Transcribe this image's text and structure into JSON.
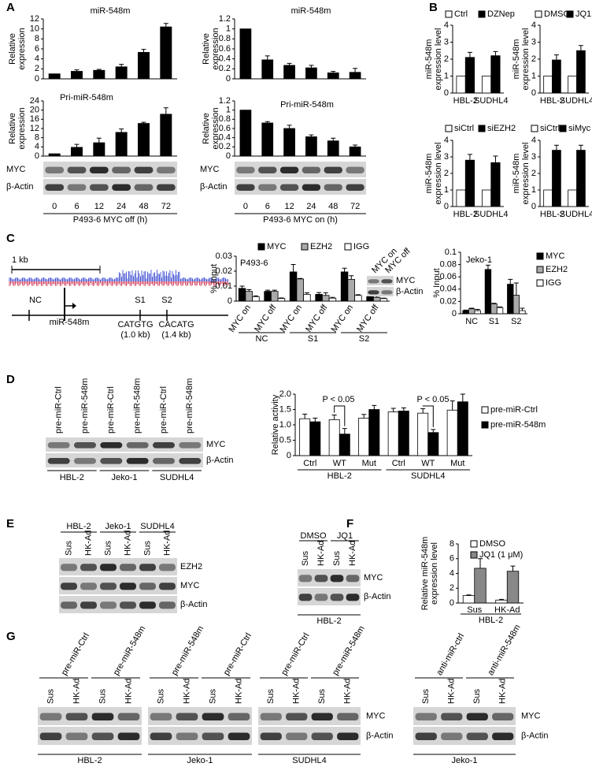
{
  "panel_letters": [
    "A",
    "B",
    "C",
    "D",
    "E",
    "F",
    "G"
  ],
  "map": {
    "scale": "1 kb",
    "sites": [
      "NC",
      "S1",
      "S2"
    ],
    "gene": "miR-548m",
    "motifs": [
      {
        "seq": "CATGTG",
        "dist": "(1.0 kb)"
      },
      {
        "seq": "CACATG",
        "dist": "(1.4 kb)"
      }
    ]
  },
  "chart_data": [
    {
      "type": "bar",
      "title": "miR-548m",
      "ylabel": [
        "Relative",
        "expression"
      ],
      "categories": [
        null,
        null,
        null,
        null,
        null,
        null
      ],
      "color": "#000000",
      "values": [
        1,
        1.5,
        1.7,
        2.4,
        5.3,
        10.4
      ],
      "errors": [
        null,
        0.3,
        0.2,
        0.5,
        0.6,
        0.7
      ],
      "ylim": [
        0,
        12
      ],
      "yticks": [
        0,
        2,
        4,
        6,
        8,
        10,
        12
      ]
    },
    {
      "type": "bar",
      "title": "Pri-miR-548m",
      "ylabel": [
        "Relative",
        "expression"
      ],
      "categories": [
        null,
        null,
        null,
        null,
        null,
        null
      ],
      "color": "#000000",
      "values": [
        1,
        3.8,
        5.8,
        10.3,
        14.2,
        18.2
      ],
      "errors": [
        null,
        1.3,
        2,
        1.5,
        0.5,
        2.8
      ],
      "ylim": [
        0,
        24
      ],
      "yticks": [
        0,
        4,
        8,
        12,
        16,
        20,
        24
      ]
    },
    {
      "type": "bar",
      "title": "miR-548m",
      "ylabel": [
        "Relative",
        "expression"
      ],
      "categories": [
        null,
        null,
        null,
        null,
        null,
        null
      ],
      "color": "#000000",
      "values": [
        1,
        0.38,
        0.27,
        0.22,
        0.12,
        0.13
      ],
      "errors": [
        null,
        0.08,
        0.04,
        0.05,
        0.03,
        0.08
      ],
      "ylim": [
        0,
        1.2
      ],
      "yticks": [
        0,
        0.2,
        0.4,
        0.6,
        0.8,
        1,
        1.2
      ]
    },
    {
      "type": "bar",
      "title": "Pri-miR-548m",
      "ylabel": [
        "Relative",
        "expression"
      ],
      "categories": [
        null,
        null,
        null,
        null,
        null,
        null
      ],
      "color": "#000000",
      "values": [
        1,
        0.72,
        0.6,
        0.42,
        0.33,
        0.2
      ],
      "errors": [
        null,
        0.03,
        0.07,
        0.04,
        0.06,
        0.04
      ],
      "ylim": [
        0,
        1.2
      ],
      "yticks": [
        0,
        0.2,
        0.4,
        0.6,
        0.8,
        1,
        1.2
      ]
    },
    {
      "type": "bar",
      "ylabel": [
        "miR-548m",
        "expression level"
      ],
      "categories": [
        "HBL-2",
        "SUDHL4"
      ],
      "ylim": [
        0,
        4
      ],
      "yticks": [
        0,
        1,
        2,
        3,
        4
      ],
      "series": [
        {
          "name": "Ctrl",
          "color": "#ffffff",
          "values": [
            1,
            1
          ]
        },
        {
          "name": "DZNep",
          "color": "#000000",
          "values": [
            2.1,
            2.2
          ],
          "errors": [
            0.3,
            0.25
          ]
        }
      ]
    },
    {
      "type": "bar",
      "ylabel": [
        "miR-548m",
        "expression level"
      ],
      "categories": [
        "HBL-2",
        "SUDHL4"
      ],
      "ylim": [
        0,
        4
      ],
      "yticks": [
        0,
        1,
        2,
        3,
        4
      ],
      "series": [
        {
          "name": "DMSO",
          "color": "#ffffff",
          "values": [
            1,
            1
          ]
        },
        {
          "name": "JQ1",
          "color": "#000000",
          "values": [
            1.95,
            2.5
          ],
          "errors": [
            0.3,
            0.3
          ]
        }
      ]
    },
    {
      "type": "bar",
      "ylabel": [
        "miR-548m",
        "expression level"
      ],
      "categories": [
        "HBL-2",
        "SUDHL4"
      ],
      "ylim": [
        0,
        4
      ],
      "yticks": [
        0,
        1,
        2,
        3,
        4
      ],
      "series": [
        {
          "name": "siCtrl",
          "color": "#ffffff",
          "values": [
            1,
            1
          ]
        },
        {
          "name": "siEZH2",
          "color": "#000000",
          "values": [
            2.8,
            2.65
          ],
          "errors": [
            0.35,
            0.4
          ]
        }
      ]
    },
    {
      "type": "bar",
      "ylabel": [
        "miR-548m",
        "expression level"
      ],
      "categories": [
        "HBL-2",
        "SUDHL4"
      ],
      "ylim": [
        0,
        4
      ],
      "yticks": [
        0,
        1,
        2,
        3,
        4
      ],
      "series": [
        {
          "name": "siCtrl",
          "color": "#ffffff",
          "values": [
            1,
            1
          ]
        },
        {
          "name": "siMyc",
          "color": "#000000",
          "values": [
            3.4,
            3.4
          ],
          "errors": [
            0.3,
            0.3
          ]
        }
      ]
    },
    {
      "type": "bar",
      "title": "P493-6",
      "ylabel": [
        "% Input"
      ],
      "categories": [
        "MYC on",
        "MYC off",
        "MYC on",
        "MYC off",
        "MYC on",
        "MYC off"
      ],
      "groups": [
        "NC",
        "S1",
        "S2"
      ],
      "ylim": [
        0,
        0.03
      ],
      "yticks": [
        0,
        0.01,
        0.02,
        0.03
      ],
      "series": [
        {
          "name": "MYC",
          "color": "#000000",
          "values": [
            0.0085,
            0.0065,
            0.0195,
            0.0045,
            0.0195,
            0.003
          ],
          "errors": [
            0.0015,
            0.0008,
            0.005,
            0.0012,
            0.0025,
            0.0008
          ]
        },
        {
          "name": "EZH2",
          "color": "#aaaaaa",
          "values": [
            0.0065,
            0.0065,
            0.0148,
            0.0038,
            0.0145,
            0.0025
          ],
          "errors": [
            0.0012,
            0.0008,
            0.0003,
            0.0018,
            0.0025,
            0.0008
          ]
        },
        {
          "name": "IGG",
          "color": "#ffffff",
          "values": [
            0.003,
            0.0018,
            0.0045,
            0.002,
            0.0038,
            0.0017
          ],
          "errors": [
            0.0005,
            0.0003,
            0.001,
            0.0005,
            0.0005,
            0.0003
          ]
        }
      ]
    },
    {
      "type": "bar",
      "title": "Jeko-1",
      "ylabel": [
        "% Input"
      ],
      "categories": [
        "NC",
        "S1",
        "S2"
      ],
      "ylim": [
        0,
        0.1
      ],
      "yticks": [
        0,
        0.02,
        0.04,
        0.06,
        0.08,
        0.1
      ],
      "series": [
        {
          "name": "MYC",
          "color": "#000000",
          "values": [
            0.005,
            0.072,
            0.048
          ],
          "errors": [
            0.001,
            0.007,
            0.008
          ]
        },
        {
          "name": "EZH2",
          "color": "#aaaaaa",
          "values": [
            0.008,
            0.016,
            0.03
          ],
          "errors": [
            0.001,
            0.001,
            0.02
          ]
        },
        {
          "name": "IGG",
          "color": "#ffffff",
          "values": [
            0.005,
            0.01,
            0.005
          ],
          "errors": [
            0.002,
            0.001,
            0.004
          ]
        }
      ]
    },
    {
      "type": "bar",
      "ylabel": [
        "Relative activity"
      ],
      "categories": [
        "Ctrl",
        "WT",
        "Mut",
        "Ctrl",
        "WT",
        "Mut"
      ],
      "groups": [
        "HBL-2",
        "SUDHL4"
      ],
      "ylim": [
        0,
        2
      ],
      "yticks": [
        0,
        0.5,
        {
          "value": 1,
          "label": "1.0"
        },
        1.5,
        {
          "value": 2,
          "label": "2.0"
        }
      ],
      "annotations": [
        "P < 0.05",
        "P < 0.05"
      ],
      "series": [
        {
          "name": "pre-miR-Ctrl",
          "color": "#ffffff",
          "values": [
            1.2,
            1.17,
            1.22,
            1.42,
            1.38,
            1.48
          ],
          "errors": [
            0.15,
            0.15,
            0.12,
            0.12,
            0.15,
            0.3
          ]
        },
        {
          "name": "pre-miR-548m",
          "color": "#000000",
          "values": [
            1.1,
            0.7,
            1.5,
            1.45,
            0.75,
            1.75
          ],
          "errors": [
            0.12,
            0.18,
            0.13,
            0.1,
            0.1,
            0.25
          ]
        }
      ]
    },
    {
      "type": "bar",
      "ylabel": [
        "Relative miR-548m",
        "expression level"
      ],
      "categories": [
        "Sus",
        "HK-Ad"
      ],
      "groups": [
        "HBL-2"
      ],
      "ylim": [
        0,
        8
      ],
      "yticks": [
        0,
        2,
        4,
        6,
        8
      ],
      "series": [
        {
          "name": "DMSO",
          "color": "#ffffff",
          "values": [
            1,
            0.4
          ],
          "errors": [
            0.1,
            0.1
          ]
        },
        {
          "name": "JQ1 (1 μM)",
          "color": "#888888",
          "values": [
            4.7,
            4.3
          ],
          "errors": [
            1.3,
            0.7
          ]
        }
      ]
    }
  ],
  "blots": [
    {
      "lanes": [
        "0",
        "6",
        "12",
        "24",
        "48",
        "72"
      ],
      "rows": [
        "MYC",
        "β-Actin"
      ],
      "caption": "P493-6 MYC off (h)"
    },
    {
      "lanes": [
        "0",
        "6",
        "12",
        "24",
        "48",
        "72"
      ],
      "rows": [
        "MYC",
        "β-Actin"
      ],
      "caption": "P493-6 MYC on (h)"
    },
    {
      "lanes": [
        "MYC on",
        "MYC off"
      ],
      "rows": [
        "MYC",
        "β-Actin"
      ]
    },
    {
      "lanes": [
        "pre-miR-Ctrl",
        "pre-miR-548m",
        "pre-miR-Ctrl",
        "pre-miR-548m",
        "pre-miR-Ctrl",
        "pre-miR-548m"
      ],
      "groups": [
        "HBL-2",
        "Jeko-1",
        "SUDHL4"
      ],
      "rows": [
        "MYC",
        "β-Actin"
      ]
    },
    {
      "groups": [
        "HBL-2",
        "Jeko-1",
        "SUDHL4"
      ],
      "lanes": [
        "Sus",
        "HK-Ad",
        "Sus",
        "HK-Ad",
        "Sus",
        "HK-Ad"
      ],
      "rows": [
        "EZH2",
        "MYC",
        "β-Actin"
      ]
    },
    {
      "groups": [
        "DMSO",
        "JQ1"
      ],
      "lanes": [
        "Sus",
        "HK-Ad",
        "Sus",
        "HK-Ad"
      ],
      "rows": [
        "MYC",
        "β-Actin"
      ],
      "caption": "HBL-2"
    },
    {
      "groups": [
        "pre-miR-Ctrl",
        "pre-miR-548m"
      ],
      "lanes": [
        "Sus",
        "HK-Ad",
        "Sus",
        "HK-Ad"
      ],
      "caption": "HBL-2"
    },
    {
      "groups": [
        "pre-miR-548m",
        "pre-miR-Ctrl"
      ],
      "lanes": [
        "Sus",
        "HK-Ad",
        "Sus",
        "HK-Ad"
      ],
      "caption": "Jeko-1"
    },
    {
      "groups": [
        "pre-miR-Ctrl",
        "pre-miR-548m"
      ],
      "lanes": [
        "Sus",
        "HK-Ad",
        "Sus",
        "HK-Ad"
      ],
      "rows": [
        "MYC",
        "β-Actin"
      ],
      "caption": "SUDHL4"
    },
    {
      "groups": [
        "anti-miR-ctrl",
        "anti-miR-548m"
      ],
      "lanes": [
        "Sus",
        "HK-Ad",
        "Sus",
        "HK-Ad"
      ],
      "rows": [
        "MYC",
        "β-Actin"
      ],
      "caption": "Jeko-1"
    }
  ]
}
